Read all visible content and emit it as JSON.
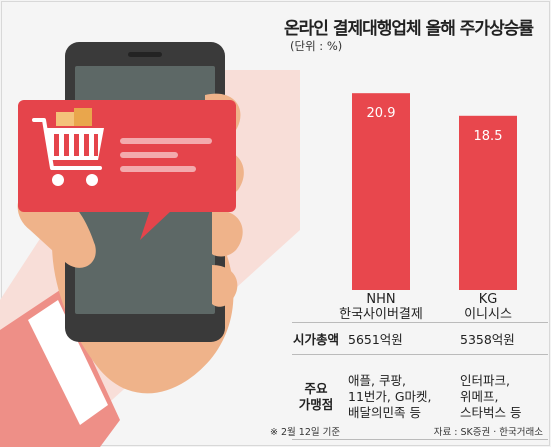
{
  "title": "온라인 결제대행업체 올해 주가상승률",
  "unit": "(단위 : %)",
  "chart_data": {
    "type": "bar",
    "categories": [
      "NHN 한국사이버결제",
      "KG 이니시스"
    ],
    "category_lines": [
      [
        "NHN",
        "한국사이버결제"
      ],
      [
        "KG",
        "이니시스"
      ]
    ],
    "values": [
      20.9,
      18.5
    ],
    "data_labels": [
      "20.9",
      "18.5"
    ],
    "ylim": [
      0,
      24
    ],
    "bar_color": "#e8474d"
  },
  "table": {
    "market_cap_label": "시가총액",
    "market_cap": [
      "5651억원",
      "5358억원"
    ],
    "merchants_label_lines": [
      "주요",
      "가맹점"
    ],
    "merchants": [
      "애플, 쿠팡,\n11번가, G마켓,\n배달의민족 등",
      "인터파크,\n위메프,\n스타벅스 등"
    ]
  },
  "note": "※ 2월 12일 기준",
  "source": "자료 : SK증권 · 한국거래소",
  "colors": {
    "accent": "#e8474d",
    "phone": "#3a3a3a",
    "screen": "#5d6866",
    "bubble": "#e5444b",
    "skin": "#efb38a"
  }
}
